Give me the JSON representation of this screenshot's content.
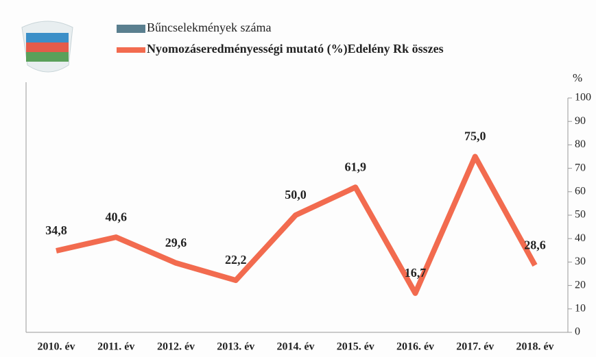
{
  "chart_data": {
    "type": "line",
    "categories": [
      "2010. év",
      "2011. év",
      "2012. év",
      "2013. év",
      "2014. év",
      "2015. év",
      "2016. év",
      "2017. év",
      "2018. év"
    ],
    "series": [
      {
        "name": "Bűncselekmények száma",
        "color": "#5a7f8f",
        "values": [
          null,
          null,
          null,
          null,
          null,
          null,
          null,
          null,
          null
        ]
      },
      {
        "name": "Nyomozáseredményességi mutató (%)Edelény Rk összes",
        "color": "#f26b4f",
        "axis": "y2",
        "values": [
          34.8,
          40.6,
          29.6,
          22.2,
          50.0,
          61.9,
          16.7,
          75.0,
          28.6
        ],
        "value_labels": [
          "34,8",
          "40,6",
          "29,6",
          "22,2",
          "50,0",
          "61,9",
          "16,7",
          "75,0",
          "28,6"
        ]
      }
    ],
    "y2label": "%",
    "y2lim": [
      0,
      100
    ],
    "y2ticks": [
      0,
      10,
      20,
      30,
      40,
      50,
      60,
      70,
      80,
      90,
      100
    ]
  }
}
